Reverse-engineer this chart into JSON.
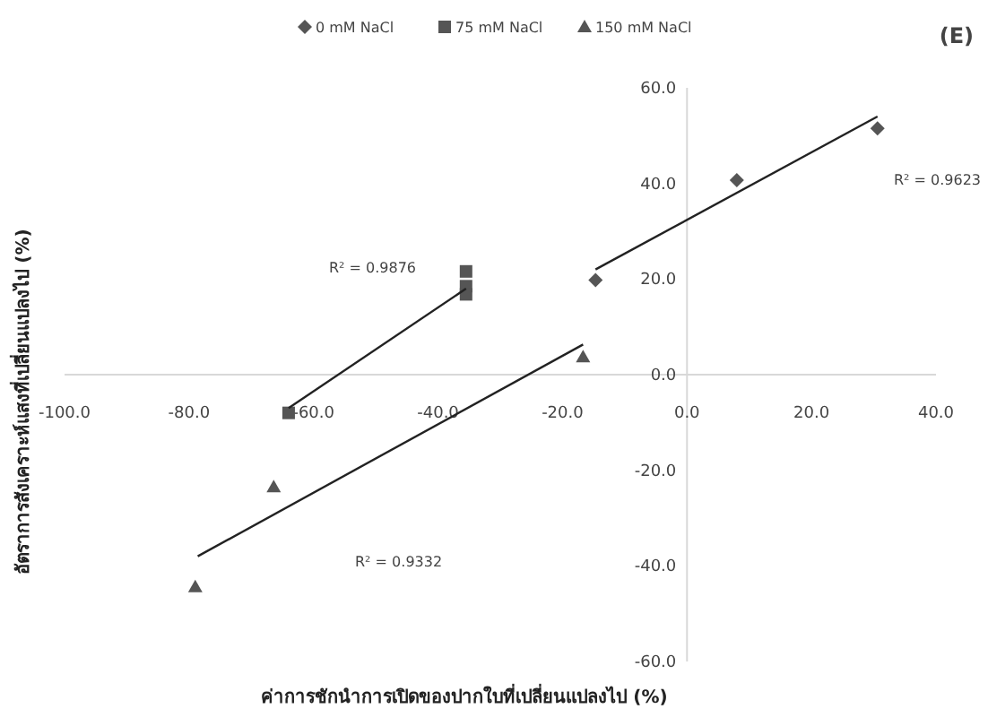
{
  "chart_data": {
    "type": "scatter",
    "xlabel": "ค่าการชักนำการเปิดของปากใบที่เปลี่ยนแปลงไป (%)",
    "ylabel": "อัตราการสังเคราะห์แสงที่เปลี่ยนแปลงไป (%)",
    "xlim": [
      -100,
      40
    ],
    "xticks": [
      {
        "value": -100,
        "label": "-100.0"
      },
      {
        "value": -80,
        "label": "-80.0"
      },
      {
        "value": -60,
        "label": "-60.0"
      },
      {
        "value": -40,
        "label": "-40.0"
      },
      {
        "value": -20,
        "label": "-20.0"
      },
      {
        "value": 0,
        "label": "0.0"
      },
      {
        "value": 20,
        "label": "20.0"
      },
      {
        "value": 40,
        "label": "40.0"
      }
    ],
    "ylim": [
      -60,
      60
    ],
    "yticks": [
      {
        "value": -60,
        "label": "-60.0"
      },
      {
        "value": -40,
        "label": "-40.0"
      },
      {
        "value": -20,
        "label": "-20.0"
      },
      {
        "value": 0,
        "label": "0.0"
      },
      {
        "value": 20,
        "label": "20.0"
      },
      {
        "value": 40,
        "label": "40.0"
      },
      {
        "value": 60,
        "label": "60.0"
      }
    ],
    "legend": "top",
    "grid": false,
    "series": [
      {
        "name": "0 mM NaCl",
        "color": "#555555",
        "marker": "diamond",
        "x": [
          -14.7,
          8,
          30.6
        ],
        "values": [
          19.8,
          40.7,
          51.5
        ]
      },
      {
        "name": "75 mM NaCl",
        "color": "#555555",
        "marker": "square",
        "x": [
          -35.5,
          -35.5,
          -35.5,
          -64
        ],
        "values": [
          21.6,
          18.5,
          16.8,
          -8
        ]
      },
      {
        "name": "150 mM NaCl",
        "color": "#555555",
        "marker": "triangle",
        "x": [
          -66.4,
          -79,
          -16.7
        ],
        "values": [
          -23.5,
          -44.4,
          3.7
        ]
      },
      {
        "type": "line",
        "color": "#222222",
        "marker": "none",
        "x": [
          -14.7,
          30.6
        ],
        "values": [
          22,
          54
        ]
      },
      {
        "type": "line",
        "color": "#222222",
        "marker": "none",
        "x": [
          -64,
          -35.5
        ],
        "values": [
          -7,
          18
        ]
      },
      {
        "type": "line",
        "color": "#222222",
        "marker": "none",
        "x": [
          -78.6,
          -16.7
        ],
        "values": [
          -38,
          6.3
        ]
      }
    ],
    "annotations": [
      "R² = 0.9623",
      "R² = 0.9876",
      "R² = 0.9332",
      "(E)"
    ]
  }
}
